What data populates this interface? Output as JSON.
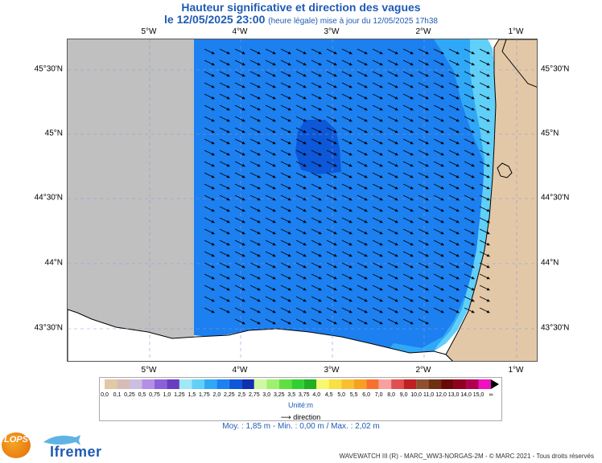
{
  "header": {
    "title": "Hauteur significative et direction des vagues",
    "date_line": "le 12/05/2025 23:00",
    "update_note": "(heure légale) mise à jour du 12/05/2025 17h38"
  },
  "map": {
    "lon_labels": [
      "5°W",
      "4°W",
      "3°W",
      "2°W",
      "1°W"
    ],
    "lat_labels": [
      "45°30'N",
      "45°N",
      "44°30'N",
      "44°N",
      "43°30'N"
    ],
    "colors": {
      "land": "#e3c8a8",
      "nodata": "#c0c0c0",
      "grid": "#8a9ad8"
    }
  },
  "legend": {
    "ticks": [
      "0,0",
      "0,1",
      "0,25",
      "0,5",
      "0,75",
      "1,0",
      "1,25",
      "1,5",
      "1,75",
      "2,0",
      "2,25",
      "2,5",
      "2,75",
      "3,0",
      "3,25",
      "3,5",
      "3,75",
      "4,0",
      "4,5",
      "5,0",
      "5,5",
      "6,0",
      "7,0",
      "8,0",
      "9,0",
      "10,0",
      "11,0",
      "12,0",
      "13,0",
      "14,0",
      "15,0",
      "∞"
    ],
    "colors": [
      "#e3c8a8",
      "#d6bcb4",
      "#cdbde0",
      "#b48ee8",
      "#8a62d8",
      "#6a3cc0",
      "#a0e8f8",
      "#60d0f8",
      "#30a8f8",
      "#1c80f0",
      "#0c58d8",
      "#1030b0",
      "#d0f8a0",
      "#a0f070",
      "#60e040",
      "#30d030",
      "#20b020",
      "#f8f870",
      "#f8e040",
      "#f8c030",
      "#f8a020",
      "#f87030",
      "#f8a0a0",
      "#e05050",
      "#c02020",
      "#905030",
      "#703010",
      "#6a0808",
      "#900020",
      "#b00050",
      "#f010c0"
    ],
    "unit": "Unité:m",
    "direction_label": "direction"
  },
  "stats": {
    "text": "Moy. : 1,85 m   -   Min. : 0,00 m / Max. : 2,02 m"
  },
  "footer": {
    "credit": "WAVEWATCH III (R) - MARC_WW3-NORGAS-2M - © MARC 2021 - Tous droits réservés",
    "logo_lops": "LOPS",
    "logo_ifremer": "Ifremer"
  }
}
